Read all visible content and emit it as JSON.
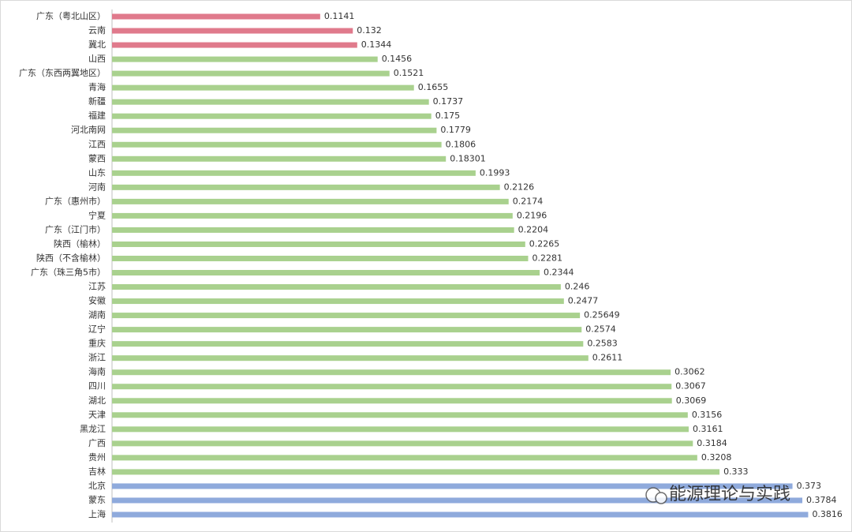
{
  "chart_data": {
    "type": "hbar",
    "categories": [
      "广东（粤北山区）",
      "云南",
      "冀北",
      "山西",
      "广东（东西两翼地区）",
      "青海",
      "新疆",
      "福建",
      "河北南网",
      "江西",
      "蒙西",
      "山东",
      "河南",
      "广东（惠州市）",
      "宁夏",
      "广东（江门市）",
      "陕西（榆林）",
      "陕西（不含榆林）",
      "广东（珠三角5市）",
      "江苏",
      "安徽",
      "湖南",
      "辽宁",
      "重庆",
      "浙江",
      "海南",
      "四川",
      "湖北",
      "天津",
      "黑龙江",
      "广西",
      "贵州",
      "吉林",
      "北京",
      "蒙东",
      "上海"
    ],
    "values": [
      0.1141,
      0.132,
      0.1344,
      0.1456,
      0.1521,
      0.1655,
      0.1737,
      0.175,
      0.1779,
      0.1806,
      0.18301,
      0.1993,
      0.2126,
      0.2174,
      0.2196,
      0.2204,
      0.2265,
      0.2281,
      0.2344,
      0.246,
      0.2477,
      0.25649,
      0.2574,
      0.2583,
      0.2611,
      0.3062,
      0.3067,
      0.3069,
      0.3156,
      0.3161,
      0.3184,
      0.3208,
      0.333,
      0.373,
      0.3784,
      0.3816
    ],
    "colors": [
      "#e07a8c",
      "#e07a8c",
      "#e07a8c",
      "#a9d18e",
      "#a9d18e",
      "#a9d18e",
      "#a9d18e",
      "#a9d18e",
      "#a9d18e",
      "#a9d18e",
      "#a9d18e",
      "#a9d18e",
      "#a9d18e",
      "#a9d18e",
      "#a9d18e",
      "#a9d18e",
      "#a9d18e",
      "#a9d18e",
      "#a9d18e",
      "#a9d18e",
      "#a9d18e",
      "#a9d18e",
      "#a9d18e",
      "#a9d18e",
      "#a9d18e",
      "#a9d18e",
      "#a9d18e",
      "#a9d18e",
      "#a9d18e",
      "#a9d18e",
      "#a9d18e",
      "#a9d18e",
      "#a9d18e",
      "#8faadc",
      "#8faadc",
      "#8faadc"
    ],
    "xlim": [
      0,
      0.4
    ],
    "watermark": "能源理论与实践"
  }
}
